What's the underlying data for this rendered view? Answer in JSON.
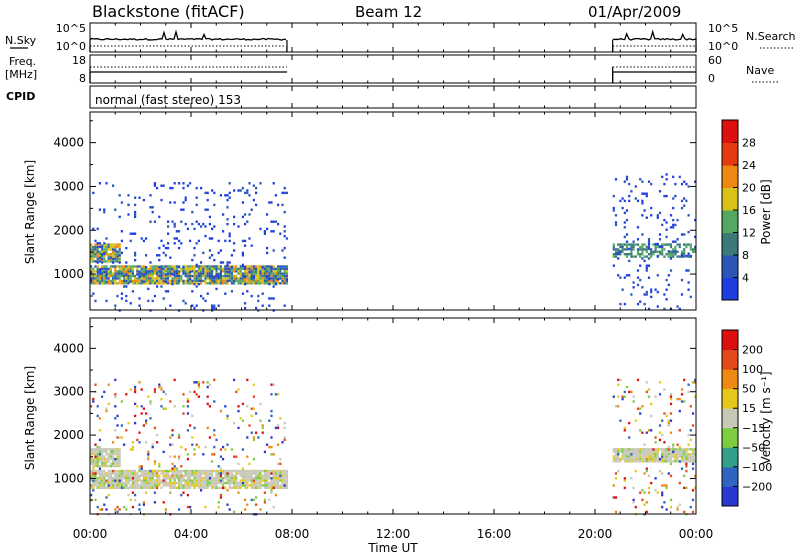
{
  "header": {
    "station": "Blackstone (fitACF)",
    "beam": "Beam 12",
    "date": "01/Apr/2009"
  },
  "chart_data": [
    {
      "type": "line",
      "panel": "noise",
      "left_label": "N.Sky",
      "right_label": "N.Search",
      "left_ticks": [
        "10^5",
        "10^0"
      ],
      "right_ticks": [
        "10^5",
        "10^0"
      ],
      "series": [
        {
          "name": "N.Sky",
          "style": "solid",
          "segments": [
            [
              0.0,
              7.8
            ],
            [
              20.7,
              24.0
            ]
          ]
        },
        {
          "name": "N.Search",
          "style": "dotted",
          "segments": [
            [
              0.0,
              7.8
            ],
            [
              20.7,
              24.0
            ]
          ]
        }
      ]
    },
    {
      "type": "line",
      "panel": "frequency",
      "left_label": "Freq.",
      "left_unit": "[MHz]",
      "left_ticks": [
        "18",
        "8"
      ],
      "right_label": "Nave",
      "right_ticks": [
        "60",
        "0"
      ],
      "series": [
        {
          "name": "Freq.",
          "style": "solid",
          "segments": [
            [
              0.0,
              7.8
            ],
            [
              20.7,
              24.0
            ]
          ]
        },
        {
          "name": "Nave",
          "style": "dotted",
          "segments": [
            [
              0.0,
              7.8
            ],
            [
              20.7,
              24.0
            ]
          ]
        }
      ]
    },
    {
      "type": "table",
      "panel": "cpid",
      "label": "CPID",
      "text": "normal (fast stereo) 153"
    },
    {
      "type": "heatmap",
      "panel": "power",
      "ylabel": "Slant Range [km]",
      "ylim": [
        180,
        4700
      ],
      "yticks": [
        1000,
        2000,
        3000,
        4000
      ],
      "xlim": [
        0,
        24
      ],
      "colorbar": {
        "label": "Power [dB]",
        "ticks": [
          "4",
          "8",
          "12",
          "16",
          "20",
          "24",
          "28"
        ],
        "colors": [
          "#1f3ee0",
          "#2a56b8",
          "#3c7a7a",
          "#55a860",
          "#d8c21a",
          "#ee8810",
          "#e33a10",
          "#dd1010"
        ]
      },
      "regions": [
        {
          "t": [
            0.0,
            7.8
          ],
          "range": [
            800,
            1200
          ],
          "level": "high"
        },
        {
          "t": [
            0.0,
            1.2
          ],
          "range": [
            1300,
            1700
          ],
          "level": "high"
        },
        {
          "t": [
            0.0,
            7.8
          ],
          "range": [
            180,
            3100
          ],
          "level": "sparse"
        },
        {
          "t": [
            20.7,
            24.0
          ],
          "range": [
            1400,
            1700
          ],
          "level": "medium"
        },
        {
          "t": [
            20.7,
            24.0
          ],
          "range": [
            180,
            3300
          ],
          "level": "sparse"
        }
      ]
    },
    {
      "type": "heatmap",
      "panel": "velocity",
      "ylabel": "Slant Range [km]",
      "ylim": [
        180,
        4700
      ],
      "yticks": [
        1000,
        2000,
        3000,
        4000
      ],
      "xlim": [
        0,
        24
      ],
      "colorbar": {
        "label": "Velocity [m s⁻¹]",
        "ticks": [
          "200",
          "100",
          "50",
          "15",
          "−15",
          "−50",
          "−100",
          "−200"
        ],
        "colors": [
          "#2838d0",
          "#2f64c0",
          "#34a08a",
          "#7ecc40",
          "#c8c8b8",
          "#e6c81c",
          "#ee8a14",
          "#e4491a",
          "#dd1010"
        ]
      },
      "regions": [
        {
          "t": [
            0.0,
            7.8
          ],
          "range": [
            800,
            1200
          ],
          "level": "ground"
        },
        {
          "t": [
            0.0,
            1.2
          ],
          "range": [
            1300,
            1700
          ],
          "level": "ground"
        },
        {
          "t": [
            0.0,
            7.8
          ],
          "range": [
            180,
            3300
          ],
          "level": "sparse"
        },
        {
          "t": [
            20.7,
            24.0
          ],
          "range": [
            1400,
            1700
          ],
          "level": "ground"
        },
        {
          "t": [
            20.7,
            24.0
          ],
          "range": [
            180,
            3300
          ],
          "level": "sparse"
        }
      ]
    }
  ],
  "xaxis": {
    "ticks": [
      "00:00",
      "04:00",
      "08:00",
      "12:00",
      "16:00",
      "20:00",
      "00:00"
    ],
    "label": "Time UT"
  }
}
